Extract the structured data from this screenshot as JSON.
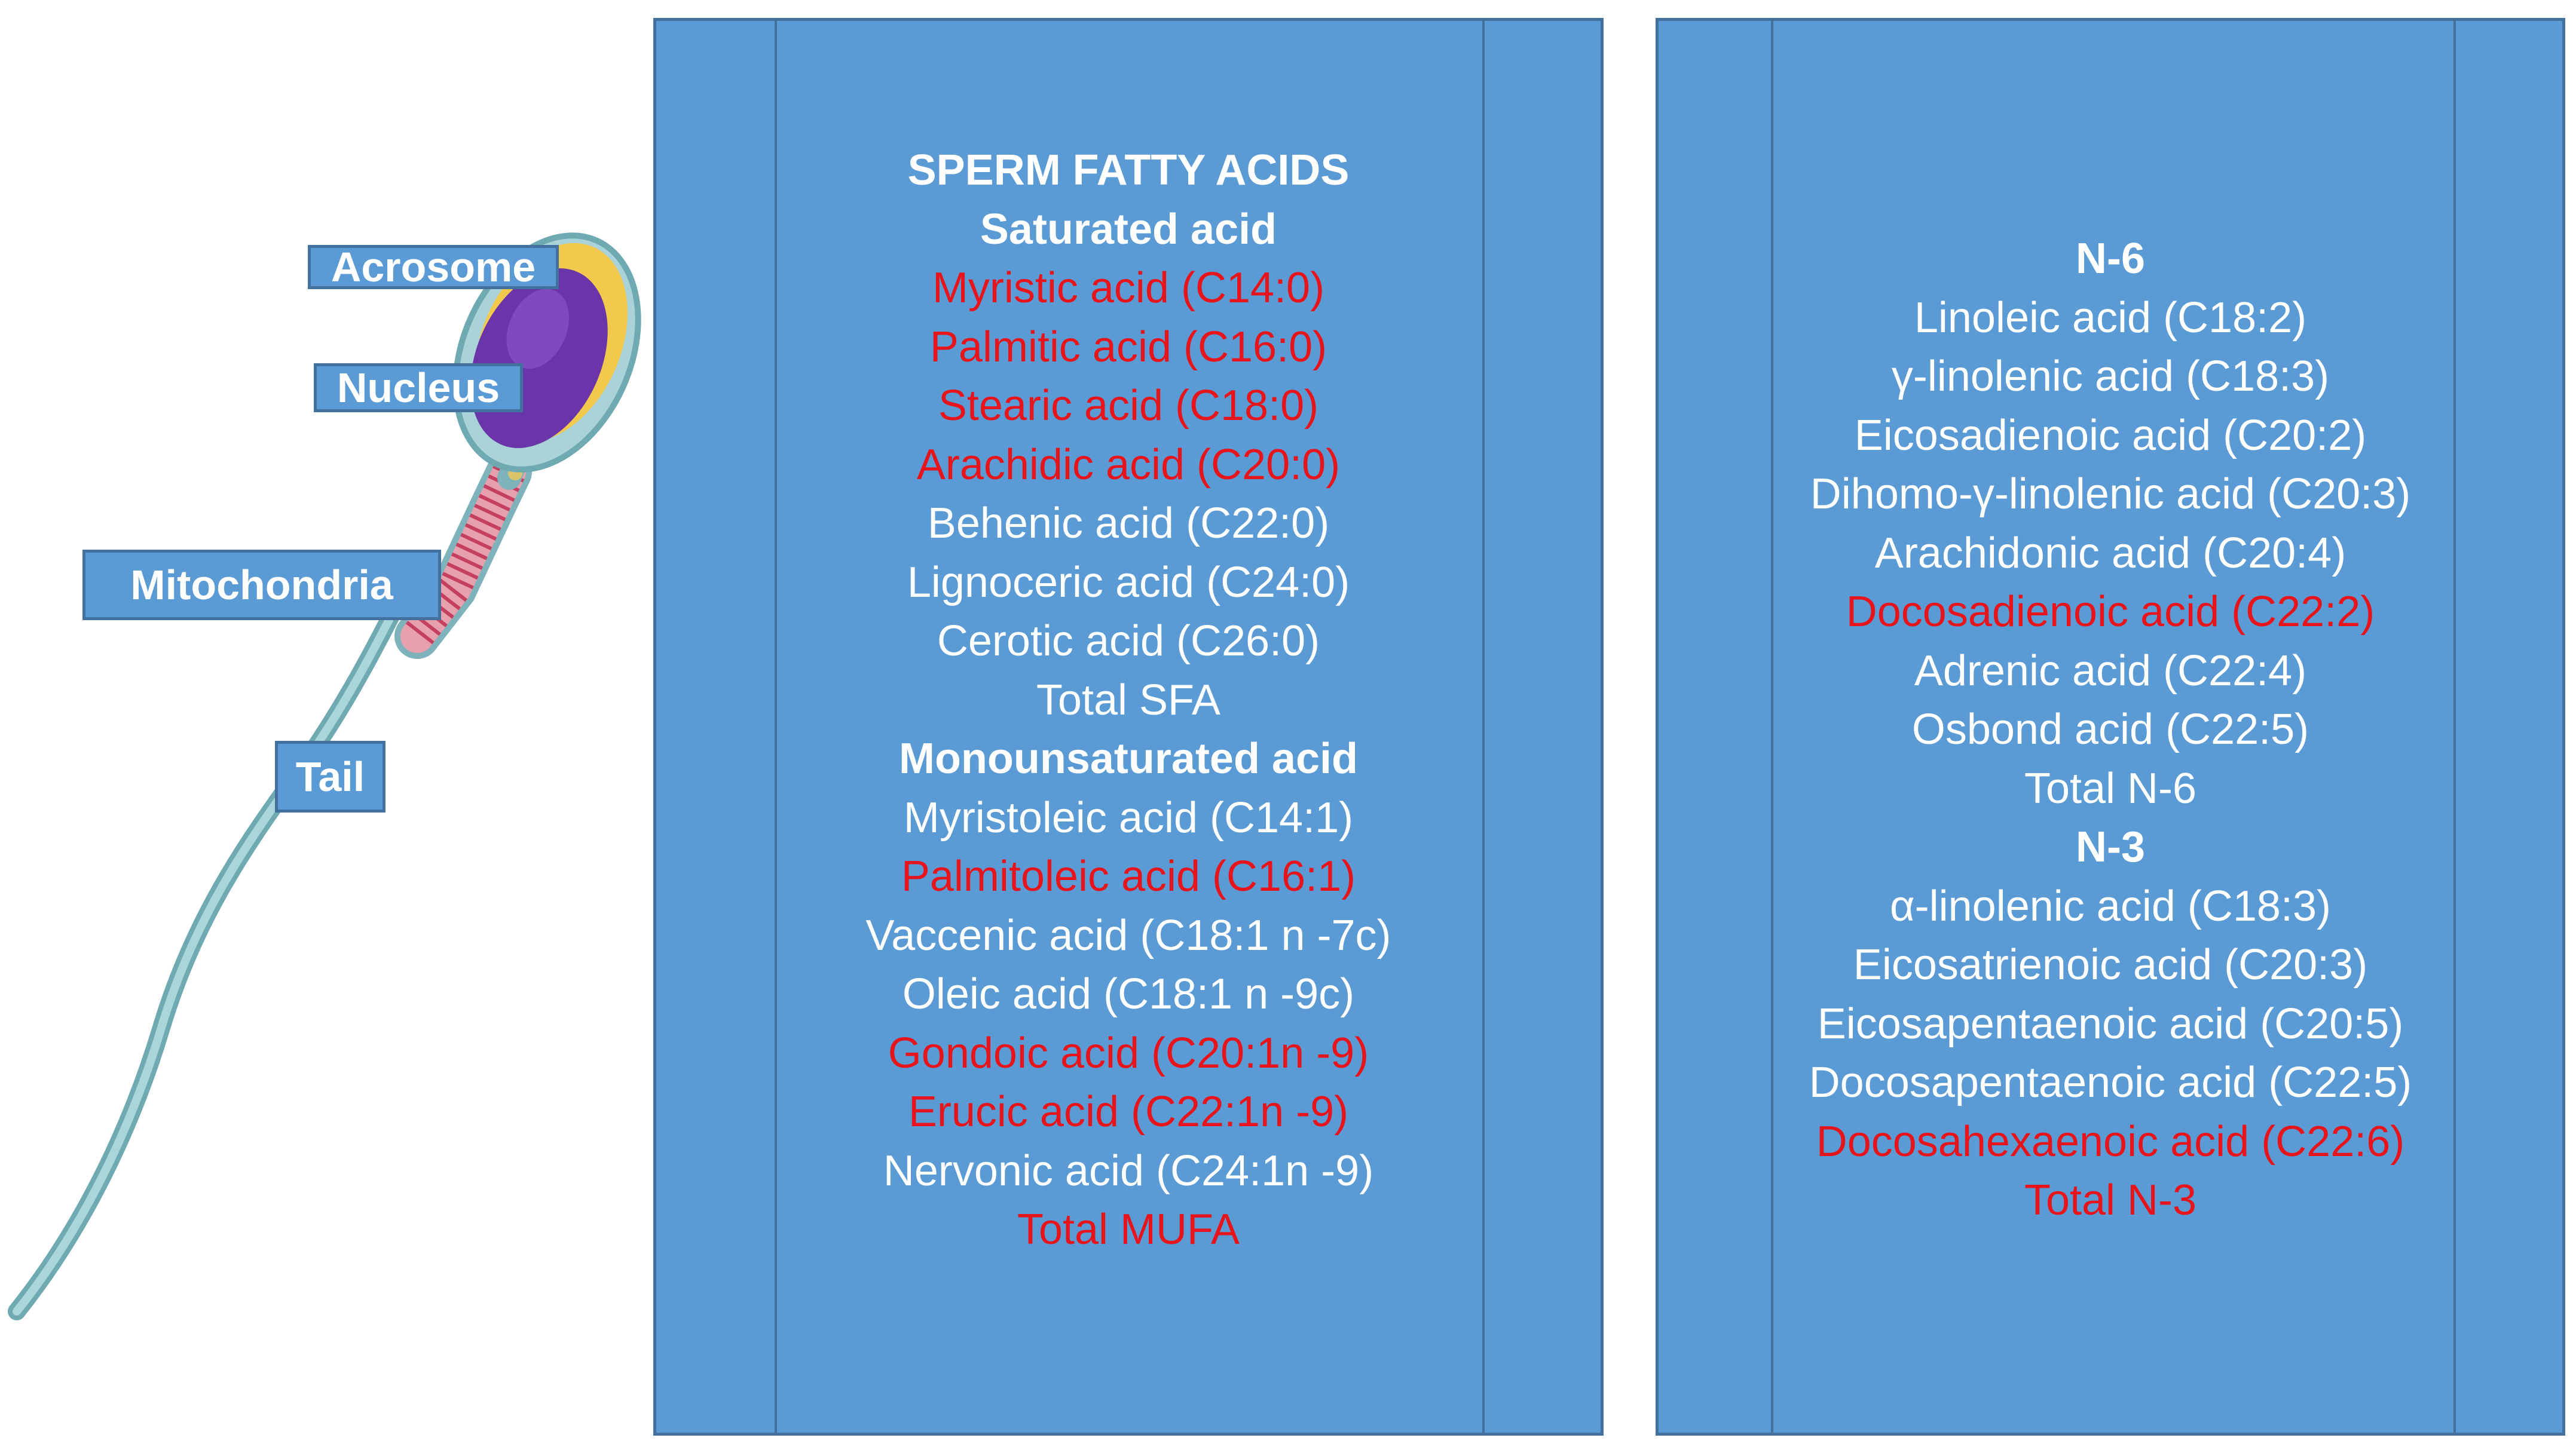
{
  "sperm_labels": {
    "acrosome": "Acrosome",
    "nucleus": "Nucleus",
    "mitochondria": "Mitochondria",
    "tail": "Tail"
  },
  "colors": {
    "panel_fill": "#5b9bd5",
    "panel_border": "#41719c",
    "text_default": "#ffffff",
    "text_highlight": "#e8141c",
    "nucleus": "#6a35a8",
    "acrosome": "#f2c94c",
    "midpiece": "#d9607a",
    "tail": "#8ec3c8"
  },
  "panel_left": {
    "rows": [
      {
        "text": "SPERM FATTY ACIDS",
        "bold": true,
        "highlight": false
      },
      {
        "text": "Saturated acid",
        "bold": true,
        "highlight": false
      },
      {
        "text": "Myristic acid (C14:0)",
        "bold": false,
        "highlight": true
      },
      {
        "text": "Palmitic acid (C16:0)",
        "bold": false,
        "highlight": true
      },
      {
        "text": "Stearic acid (C18:0)",
        "bold": false,
        "highlight": true
      },
      {
        "text": "Arachidic acid (C20:0)",
        "bold": false,
        "highlight": true
      },
      {
        "text": "Behenic acid (C22:0)",
        "bold": false,
        "highlight": false
      },
      {
        "text": "Lignoceric acid (C24:0)",
        "bold": false,
        "highlight": false
      },
      {
        "text": "Cerotic acid (C26:0)",
        "bold": false,
        "highlight": false
      },
      {
        "text": "Total SFA",
        "bold": false,
        "highlight": false
      },
      {
        "text": "Monounsaturated acid",
        "bold": true,
        "highlight": false
      },
      {
        "text": "Myristoleic acid (C14:1)",
        "bold": false,
        "highlight": false
      },
      {
        "text": "Palmitoleic acid (C16:1)",
        "bold": false,
        "highlight": true
      },
      {
        "text": "Vaccenic acid (C18:1 n -7c)",
        "bold": false,
        "highlight": false
      },
      {
        "text": "Oleic acid (C18:1 n -9c)",
        "bold": false,
        "highlight": false
      },
      {
        "text": "Gondoic acid (C20:1n -9)",
        "bold": false,
        "highlight": true
      },
      {
        "text": "Erucic acid (C22:1n -9)",
        "bold": false,
        "highlight": true
      },
      {
        "text": "Nervonic acid (C24:1n -9)",
        "bold": false,
        "highlight": false
      },
      {
        "text": "Total MUFA",
        "bold": false,
        "highlight": true
      }
    ]
  },
  "panel_right": {
    "rows": [
      {
        "text": "N-6",
        "bold": true,
        "highlight": false
      },
      {
        "text": "Linoleic acid (C18:2)",
        "bold": false,
        "highlight": false
      },
      {
        "text": "γ-linolenic acid (C18:3)",
        "bold": false,
        "highlight": false
      },
      {
        "text": "Eicosadienoic acid (C20:2)",
        "bold": false,
        "highlight": false
      },
      {
        "text": "Dihomo-γ-linolenic acid (C20:3)",
        "bold": false,
        "highlight": false
      },
      {
        "text": "Arachidonic acid (C20:4)",
        "bold": false,
        "highlight": false
      },
      {
        "text": "Docosadienoic acid (C22:2)",
        "bold": false,
        "highlight": true
      },
      {
        "text": "Adrenic acid (C22:4)",
        "bold": false,
        "highlight": false
      },
      {
        "text": "Osbond acid (C22:5)",
        "bold": false,
        "highlight": false
      },
      {
        "text": "Total N-6",
        "bold": false,
        "highlight": false
      },
      {
        "text": "N-3",
        "bold": true,
        "highlight": false
      },
      {
        "text": "α-linolenic acid (C18:3)",
        "bold": false,
        "highlight": false
      },
      {
        "text": "Eicosatrienoic acid (C20:3)",
        "bold": false,
        "highlight": false
      },
      {
        "text": "Eicosapentaenoic acid (C20:5)",
        "bold": false,
        "highlight": false
      },
      {
        "text": "Docosapentaenoic acid (C22:5)",
        "bold": false,
        "highlight": false
      },
      {
        "text": "Docosahexaenoic acid (C22:6)",
        "bold": false,
        "highlight": true
      },
      {
        "text": "Total N-3",
        "bold": false,
        "highlight": true
      }
    ]
  }
}
